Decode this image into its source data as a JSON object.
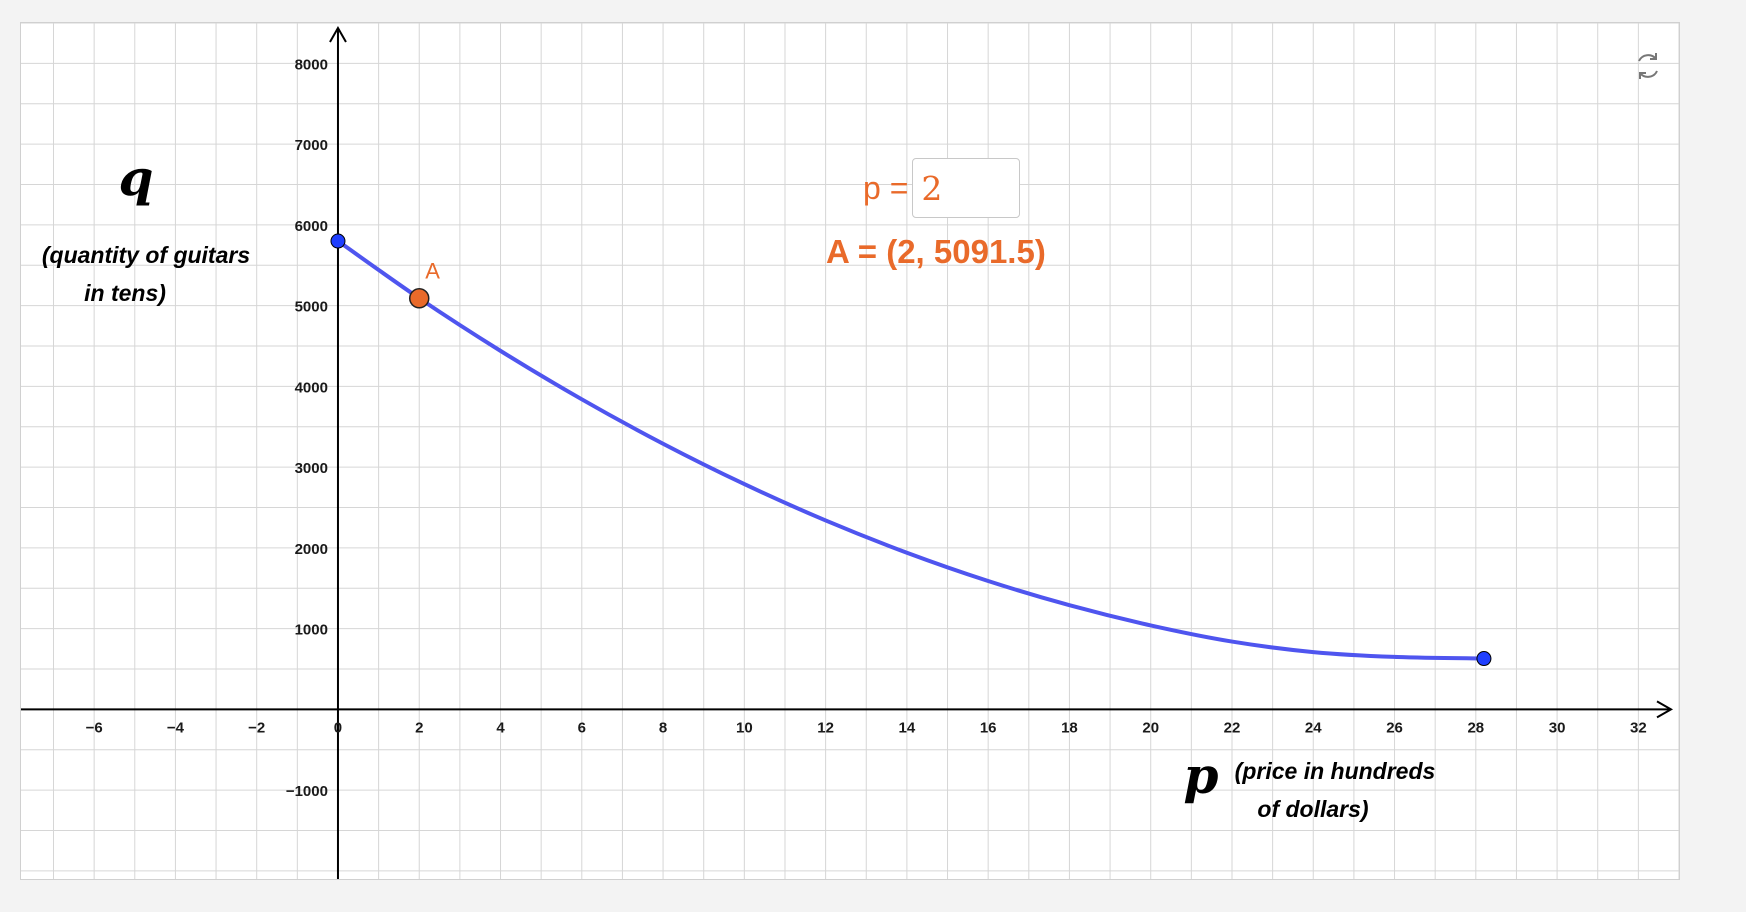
{
  "graph": {
    "x_variable": "p",
    "x_description": [
      "(price in hundreds",
      "of dollars)"
    ],
    "y_variable": "q",
    "y_description": [
      "(quantity of guitars",
      "in tens)"
    ],
    "slider_label": "p =",
    "slider_value": "2",
    "point_label": "A",
    "point_readout": "A = (2, 5091.5)",
    "reset_icon": "refresh-icon"
  },
  "colors": {
    "curve": "#4f55ef",
    "endpoint": "#1f3fff",
    "point": "#e96a2a",
    "grid": "#d6d6d6",
    "axis": "#000000"
  },
  "chart_data": {
    "type": "line",
    "xlim": [
      -7.8,
      33
    ],
    "ylim": [
      -2100,
      8500
    ],
    "grid": true,
    "x_ticks": [
      -6,
      -4,
      -2,
      0,
      2,
      4,
      6,
      8,
      10,
      12,
      14,
      16,
      18,
      20,
      22,
      24,
      26,
      28,
      30,
      32
    ],
    "x_tick_labels": [
      "−6",
      "−4",
      "−2",
      "0",
      "2",
      "4",
      "6",
      "8",
      "10",
      "12",
      "14",
      "16",
      "18",
      "20",
      "22",
      "24",
      "26",
      "28",
      "30",
      "32"
    ],
    "y_ticks": [
      -1000,
      1000,
      2000,
      3000,
      4000,
      5000,
      6000,
      7000,
      8000
    ],
    "y_tick_labels": [
      "−1000",
      "1000",
      "2000",
      "3000",
      "4000",
      "5000",
      "6000",
      "7000",
      "8000"
    ],
    "series": [
      {
        "x": [
          0,
          2,
          4,
          6,
          8,
          10,
          12,
          14,
          16,
          18,
          20,
          22,
          24,
          26,
          28.2
        ],
        "y": [
          5800,
          5091.5,
          4440,
          3840,
          3290,
          2790,
          2340,
          1940,
          1590,
          1290,
          1040,
          840,
          710,
          650,
          630
        ]
      }
    ],
    "endpoints": [
      {
        "x": 0,
        "y": 5800
      },
      {
        "x": 28.2,
        "y": 630
      }
    ],
    "highlighted_point": {
      "label": "A",
      "x": 2,
      "y": 5091.5
    }
  }
}
